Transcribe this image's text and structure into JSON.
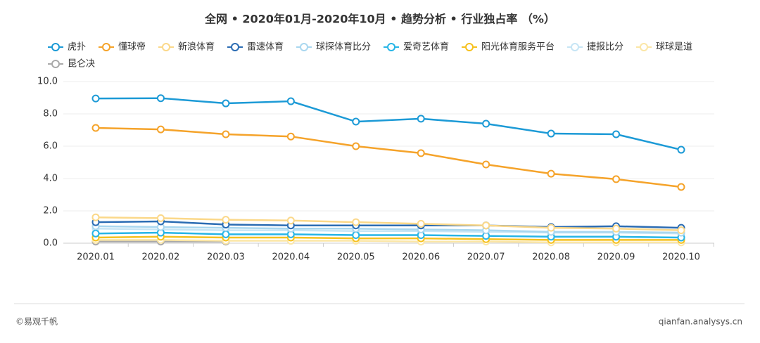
{
  "chart_data": {
    "type": "line",
    "title": "全网 • 2020年01月-2020年10月 • 趋势分析 • 行业独占率 （%）",
    "x": [
      "2020.01",
      "2020.02",
      "2020.03",
      "2020.04",
      "2020.05",
      "2020.06",
      "2020.07",
      "2020.08",
      "2020.09",
      "2020.10"
    ],
    "ylim": [
      0,
      10
    ],
    "yticks": [
      {
        "value": 0,
        "label": "0.0"
      },
      {
        "value": 2,
        "label": "2.0"
      },
      {
        "value": 4,
        "label": "4.0"
      },
      {
        "value": 6,
        "label": "6.0"
      },
      {
        "value": 8,
        "label": "8.0"
      },
      {
        "value": 10,
        "label": "10.0"
      }
    ],
    "grid": true,
    "series": [
      {
        "name": "虎扑",
        "color": "#1c9ad6",
        "values": [
          8.95,
          8.97,
          8.65,
          8.78,
          7.52,
          7.7,
          7.39,
          6.78,
          6.74,
          5.78
        ]
      },
      {
        "name": "懂球帝",
        "color": "#f5a32a",
        "values": [
          7.13,
          7.04,
          6.74,
          6.6,
          6.0,
          5.57,
          4.87,
          4.3,
          3.96,
          3.48
        ]
      },
      {
        "name": "新浪体育",
        "color": "#fbd889",
        "values": [
          1.6,
          1.55,
          1.45,
          1.4,
          1.3,
          1.2,
          1.1,
          0.95,
          0.9,
          0.8
        ]
      },
      {
        "name": "雷速体育",
        "color": "#2b6cb3",
        "values": [
          1.3,
          1.35,
          1.15,
          1.1,
          1.1,
          1.1,
          1.1,
          1.0,
          1.05,
          0.95
        ]
      },
      {
        "name": "球探体育比分",
        "color": "#a9d7ef",
        "values": [
          1.05,
          1.0,
          0.95,
          0.9,
          0.9,
          0.85,
          0.8,
          0.7,
          0.7,
          0.65
        ]
      },
      {
        "name": "爱奇艺体育",
        "color": "#27b5e6",
        "values": [
          0.6,
          0.65,
          0.55,
          0.55,
          0.5,
          0.5,
          0.45,
          0.4,
          0.4,
          0.35
        ]
      },
      {
        "name": "阳光体育服务平台",
        "color": "#f6c11e",
        "values": [
          0.35,
          0.4,
          0.35,
          0.35,
          0.3,
          0.3,
          0.25,
          0.2,
          0.2,
          0.2
        ]
      },
      {
        "name": "捷报比分",
        "color": "#c6e5f5",
        "values": [
          0.9,
          0.85,
          0.8,
          0.8,
          0.75,
          0.75,
          0.7,
          0.65,
          0.65,
          0.6
        ]
      },
      {
        "name": "球球是道",
        "color": "#fbe6a6",
        "values": [
          0.2,
          0.2,
          0.15,
          0.15,
          0.15,
          0.1,
          0.1,
          0.05,
          0.05,
          0.05
        ]
      },
      {
        "name": "昆仑决",
        "color": "#aaaaaa",
        "values": [
          0.1,
          0.1,
          0.1,
          null,
          null,
          null,
          null,
          null,
          null,
          null
        ]
      }
    ]
  },
  "footer": {
    "left": "©易观千帆",
    "right": "qianfan.analysys.cn"
  }
}
